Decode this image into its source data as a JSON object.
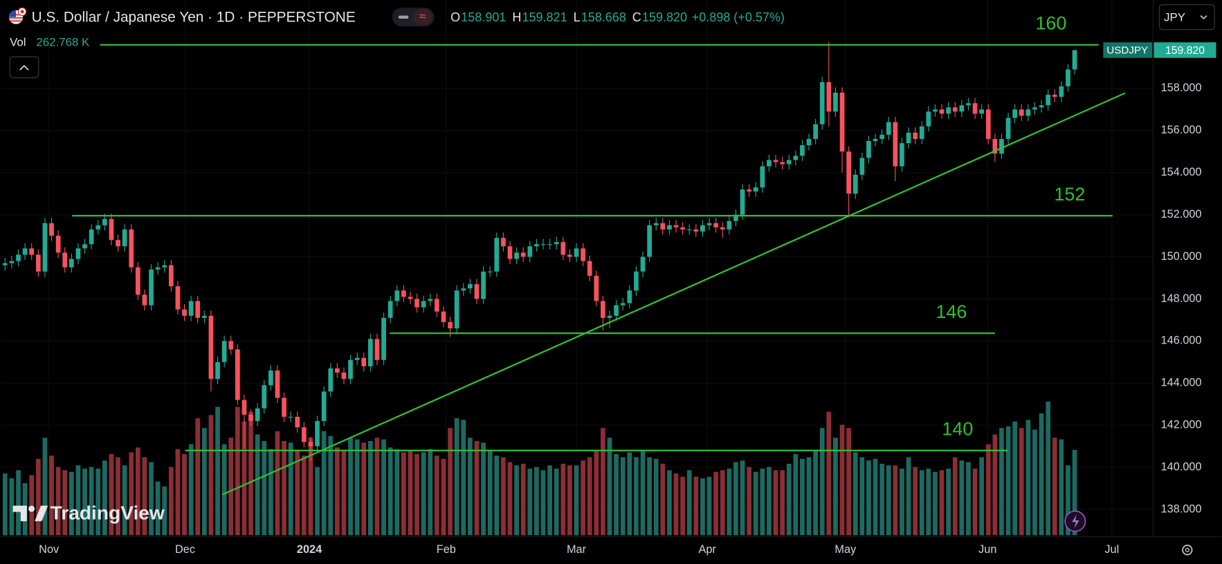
{
  "header": {
    "title": "U.S. Dollar / Japanese Yen · 1D · PEPPERSTONE",
    "ohlc": [
      {
        "key": "O",
        "value": "158.901"
      },
      {
        "key": "H",
        "value": "159.821"
      },
      {
        "key": "L",
        "value": "158.668"
      },
      {
        "key": "C",
        "value": "159.820"
      }
    ],
    "change": "+0.898 (+0.57%)",
    "vol_label": "Vol",
    "vol_value": "262.768 K",
    "currency": "JPY"
  },
  "watermark": "TradingView",
  "chart_data": {
    "type": "candlestick",
    "symbol": "USDJPY",
    "last_price_label": "159.820",
    "open": [
      149.6,
      149.7,
      149.8,
      150.1,
      150.4,
      150.1,
      149.3,
      151.6,
      151.0,
      150.2,
      149.5,
      149.9,
      150.4,
      150.6,
      151.3,
      151.5,
      151.8,
      150.8,
      150.5,
      151.3,
      149.5,
      148.2,
      147.7,
      149.4,
      149.5,
      149.6,
      148.6,
      147.5,
      147.2,
      147.9,
      147.1,
      147.2,
      144.2,
      145.0,
      146.0,
      145.6,
      143.2,
      142.5,
      142.2,
      142.8,
      143.9,
      144.6,
      143.3,
      142.4,
      142.4,
      141.9,
      141.2,
      141.0,
      142.2,
      143.6,
      144.7,
      144.5,
      144.2,
      145.1,
      145.2,
      144.8,
      146.1,
      145.1,
      147.1,
      147.9,
      148.4,
      148.1,
      148.0,
      147.6,
      147.9,
      148.0,
      147.4,
      146.9,
      146.6,
      148.4,
      148.5,
      148.7,
      148.0,
      149.3,
      149.3,
      150.9,
      150.5,
      149.9,
      150.2,
      150.0,
      150.5,
      150.6,
      150.6,
      150.6,
      150.7,
      150.1,
      150.0,
      150.4,
      149.8,
      149.1,
      147.9,
      147.1,
      147.2,
      147.7,
      147.8,
      148.4,
      149.3,
      150.0,
      151.5,
      151.6,
      151.3,
      151.5,
      151.4,
      151.3,
      151.3,
      151.2,
      151.5,
      151.6,
      151.4,
      151.3,
      151.7,
      152.0,
      153.2,
      153.1,
      153.3,
      154.3,
      154.6,
      154.5,
      154.4,
      154.6,
      154.8,
      155.3,
      155.6,
      156.3,
      158.3,
      156.9,
      157.8,
      155.0,
      153.0,
      153.9,
      154.7,
      155.5,
      155.6,
      155.8,
      156.4,
      154.3,
      155.4,
      155.9,
      155.6,
      156.2,
      156.9,
      157.0,
      156.8,
      157.1,
      156.9,
      157.2,
      157.3,
      156.8,
      157.0,
      155.6,
      154.9,
      155.6,
      156.6,
      157.0,
      156.7,
      157.0,
      157.1,
      157.2,
      157.7,
      157.6,
      158.1,
      158.901
    ],
    "high": [
      149.95,
      150.05,
      150.35,
      150.65,
      150.65,
      150.35,
      151.85,
      151.85,
      151.25,
      150.45,
      150.15,
      150.65,
      150.85,
      151.55,
      151.75,
      152.05,
      152.05,
      151.05,
      151.55,
      151.55,
      149.75,
      148.45,
      149.65,
      149.75,
      149.85,
      149.85,
      148.85,
      147.75,
      148.15,
      148.15,
      147.45,
      147.45,
      145.25,
      146.25,
      146.25,
      145.85,
      143.45,
      142.75,
      143.05,
      144.15,
      144.85,
      144.85,
      143.55,
      142.65,
      142.65,
      142.15,
      141.45,
      142.45,
      143.85,
      144.95,
      144.95,
      144.75,
      145.35,
      145.45,
      145.45,
      146.35,
      146.35,
      147.35,
      148.15,
      148.65,
      148.65,
      148.35,
      148.25,
      148.15,
      148.25,
      148.25,
      147.65,
      147.15,
      148.65,
      148.75,
      148.95,
      148.95,
      149.55,
      149.55,
      151.15,
      151.15,
      150.75,
      150.45,
      150.45,
      150.75,
      150.85,
      150.85,
      150.85,
      150.95,
      150.95,
      150.35,
      150.65,
      150.65,
      150.05,
      149.35,
      148.15,
      147.45,
      147.95,
      148.05,
      148.65,
      149.55,
      150.25,
      151.75,
      151.85,
      151.85,
      151.75,
      151.75,
      151.65,
      151.55,
      151.55,
      151.75,
      151.85,
      151.85,
      151.65,
      151.95,
      152.25,
      153.45,
      153.45,
      153.55,
      154.55,
      154.85,
      154.85,
      154.75,
      154.85,
      155.05,
      155.55,
      155.85,
      156.55,
      158.55,
      160.2,
      158.05,
      158.05,
      155.25,
      154.15,
      154.95,
      155.75,
      155.85,
      156.05,
      156.65,
      156.65,
      155.65,
      156.15,
      156.15,
      156.45,
      157.15,
      157.25,
      157.25,
      157.35,
      157.35,
      157.45,
      157.55,
      157.55,
      157.25,
      157.25,
      155.85,
      155.85,
      156.85,
      157.25,
      157.25,
      157.25,
      157.35,
      157.45,
      157.95,
      157.95,
      158.35,
      159.15,
      159.821
    ],
    "low": [
      149.35,
      149.45,
      149.55,
      149.85,
      149.85,
      149.05,
      149.05,
      150.75,
      149.95,
      149.25,
      149.25,
      149.65,
      150.15,
      150.35,
      151.05,
      151.25,
      150.55,
      150.25,
      150.25,
      149.25,
      147.95,
      147.45,
      147.45,
      149.15,
      149.25,
      148.35,
      147.25,
      146.95,
      146.95,
      146.85,
      146.85,
      143.6,
      143.95,
      144.75,
      145.35,
      142.95,
      140.9,
      141.95,
      141.95,
      142.55,
      143.65,
      143.05,
      142.15,
      142.15,
      141.65,
      140.95,
      140.3,
      140.75,
      141.95,
      143.35,
      144.25,
      143.95,
      143.95,
      144.85,
      144.55,
      144.55,
      144.85,
      144.85,
      146.85,
      147.65,
      147.85,
      147.75,
      147.35,
      147.35,
      147.65,
      147.15,
      146.65,
      146.2,
      146.35,
      148.15,
      148.25,
      147.75,
      147.75,
      149.05,
      149.05,
      150.25,
      149.65,
      149.65,
      149.75,
      149.75,
      150.25,
      150.35,
      150.35,
      150.35,
      149.85,
      149.75,
      149.75,
      149.55,
      148.85,
      147.65,
      146.5,
      146.6,
      146.95,
      147.45,
      147.55,
      148.15,
      149.05,
      149.75,
      151.25,
      151.05,
      151.05,
      151.15,
      151.05,
      151.05,
      150.95,
      150.95,
      151.25,
      151.15,
      150.9,
      151.05,
      151.45,
      151.75,
      152.85,
      152.85,
      153.05,
      154.05,
      154.25,
      154.15,
      154.15,
      154.35,
      154.55,
      155.05,
      155.35,
      156.05,
      156.2,
      156.65,
      154.0,
      151.9,
      152.75,
      153.65,
      154.45,
      155.25,
      155.35,
      155.55,
      153.6,
      154.05,
      155.15,
      155.35,
      155.35,
      155.95,
      156.65,
      156.55,
      156.55,
      156.65,
      156.65,
      156.95,
      156.55,
      156.55,
      155.35,
      154.5,
      154.65,
      155.35,
      156.35,
      156.45,
      156.45,
      156.75,
      156.85,
      156.95,
      157.35,
      157.35,
      157.85,
      158.668
    ],
    "close": [
      149.7,
      149.8,
      150.1,
      150.4,
      150.1,
      149.3,
      151.6,
      151.0,
      150.2,
      149.5,
      149.9,
      150.4,
      150.6,
      151.3,
      151.5,
      151.8,
      150.8,
      150.5,
      151.3,
      149.5,
      148.2,
      147.7,
      149.4,
      149.5,
      149.6,
      148.6,
      147.5,
      147.2,
      147.9,
      147.1,
      147.2,
      144.2,
      145.0,
      146.0,
      145.6,
      143.2,
      142.5,
      142.2,
      142.8,
      143.9,
      144.6,
      143.3,
      142.4,
      142.4,
      141.9,
      141.2,
      141.0,
      142.2,
      143.6,
      144.7,
      144.5,
      144.2,
      145.1,
      145.2,
      144.8,
      146.1,
      145.1,
      147.1,
      147.9,
      148.4,
      148.1,
      148.0,
      147.6,
      147.9,
      148.0,
      147.4,
      146.9,
      146.6,
      148.4,
      148.5,
      148.7,
      148.0,
      149.3,
      149.3,
      150.9,
      150.5,
      149.9,
      150.2,
      150.0,
      150.5,
      150.6,
      150.6,
      150.6,
      150.7,
      150.1,
      150.0,
      150.4,
      149.8,
      149.1,
      147.9,
      147.1,
      147.2,
      147.7,
      147.8,
      148.4,
      149.3,
      150.0,
      151.5,
      151.6,
      151.3,
      151.5,
      151.4,
      151.3,
      151.3,
      151.2,
      151.5,
      151.6,
      151.4,
      151.3,
      151.7,
      152.0,
      153.2,
      153.1,
      153.3,
      154.3,
      154.6,
      154.5,
      154.4,
      154.6,
      154.8,
      155.3,
      155.6,
      156.3,
      158.3,
      156.9,
      157.8,
      155.0,
      153.0,
      153.9,
      154.7,
      155.5,
      155.6,
      155.8,
      156.4,
      154.3,
      155.4,
      155.9,
      155.6,
      156.2,
      156.9,
      157.0,
      156.8,
      157.1,
      156.9,
      157.2,
      157.3,
      156.8,
      157.0,
      155.6,
      154.9,
      155.6,
      156.6,
      157.0,
      156.7,
      157.0,
      157.1,
      157.2,
      157.7,
      157.6,
      158.1,
      158.9,
      159.82
    ],
    "volume": [
      190,
      175,
      200,
      160,
      185,
      235,
      300,
      245,
      210,
      200,
      195,
      215,
      205,
      210,
      205,
      230,
      250,
      240,
      215,
      255,
      270,
      240,
      225,
      165,
      150,
      210,
      265,
      250,
      280,
      360,
      330,
      370,
      395,
      280,
      300,
      395,
      350,
      380,
      310,
      290,
      265,
      320,
      290,
      285,
      260,
      245,
      300,
      210,
      320,
      305,
      270,
      260,
      300,
      295,
      285,
      290,
      300,
      295,
      270,
      265,
      255,
      260,
      250,
      255,
      265,
      245,
      235,
      330,
      360,
      355,
      300,
      290,
      285,
      260,
      245,
      240,
      225,
      215,
      220,
      205,
      210,
      200,
      215,
      205,
      220,
      215,
      215,
      230,
      240,
      260,
      330,
      300,
      250,
      240,
      255,
      240,
      260,
      240,
      235,
      220,
      200,
      190,
      180,
      200,
      180,
      175,
      180,
      195,
      200,
      205,
      225,
      230,
      210,
      195,
      205,
      210,
      200,
      200,
      220,
      250,
      235,
      240,
      260,
      330,
      380,
      300,
      340,
      330,
      255,
      240,
      230,
      235,
      220,
      215,
      215,
      205,
      240,
      210,
      200,
      205,
      195,
      200,
      205,
      240,
      230,
      225,
      205,
      240,
      280,
      310,
      330,
      335,
      350,
      330,
      355,
      325,
      375,
      411,
      300,
      295,
      215,
      262.768
    ],
    "up_color": "#22ab94",
    "down_color": "#f7525f",
    "volume_up_color": "#1c6a62",
    "volume_down_color": "#8b2e35",
    "volume_lim": [
      0,
      450
    ],
    "xlim": [
      -0.7,
      172.8
    ],
    "xticks": [
      {
        "value": 6.6,
        "label": "Nov"
      },
      {
        "value": 27.1,
        "label": "Dec"
      },
      {
        "value": 45.8,
        "label": "2024"
      },
      {
        "value": 66.4,
        "label": "Feb"
      },
      {
        "value": 86,
        "label": "Mar"
      },
      {
        "value": 105.7,
        "label": "Apr"
      },
      {
        "value": 126.5,
        "label": "May"
      },
      {
        "value": 147.9,
        "label": "Jun"
      },
      {
        "value": 166.6,
        "label": "Jul"
      }
    ],
    "ylim": [
      136.7,
      162.2
    ],
    "yticks": [
      {
        "value": 138,
        "label": "138.000"
      },
      {
        "value": 140,
        "label": "140.000"
      },
      {
        "value": 142,
        "label": "142.000"
      },
      {
        "value": 144,
        "label": "144.000"
      },
      {
        "value": 146,
        "label": "146.000"
      },
      {
        "value": 148,
        "label": "148.000"
      },
      {
        "value": 150,
        "label": "150.000"
      },
      {
        "value": 152,
        "label": "152.000"
      },
      {
        "value": 154,
        "label": "154.000"
      },
      {
        "value": 156,
        "label": "156.000"
      },
      {
        "value": 158,
        "label": "158.000"
      }
    ],
    "grid": true,
    "line_color": "#2fc12f",
    "lines": [
      {
        "label": "160",
        "y": 160.07,
        "x": [
          14.3,
          164.6
        ]
      },
      {
        "label": "152",
        "y": 151.95,
        "x": [
          10.1,
          166.7
        ]
      },
      {
        "label": "146",
        "y": 146.37,
        "x": [
          57.9,
          149.0
        ]
      },
      {
        "label": "140",
        "y": 140.8,
        "x": [
          27.1,
          150.9
        ]
      }
    ],
    "trendline": {
      "x": [
        32.7,
        168.6
      ],
      "y": [
        138.7,
        157.78
      ]
    }
  }
}
